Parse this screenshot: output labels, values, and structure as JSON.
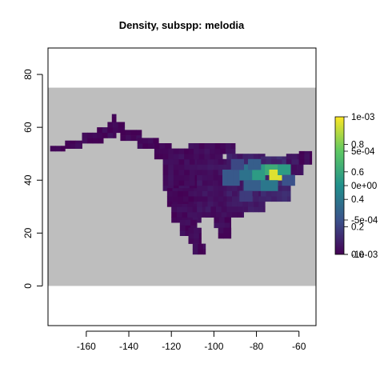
{
  "chart_data": {
    "type": "heatmap",
    "title": "Density, subspp: melodia",
    "xlabel": "",
    "ylabel": "",
    "xlim": [
      -178,
      -52
    ],
    "ylim": [
      -15,
      90
    ],
    "x_ticks": [
      -160,
      -140,
      -120,
      -100,
      -80,
      -60
    ],
    "y_ticks": [
      0,
      20,
      40,
      60,
      80
    ],
    "background_region": {
      "x": [
        -178,
        -52
      ],
      "y": [
        0,
        75
      ],
      "color": "#bebebe"
    },
    "colors": {
      "low": "#440154",
      "mid1": "#3b528b",
      "mid2": "#21908c",
      "mid3": "#5dc863",
      "high": "#fde725",
      "background": "#bebebe"
    },
    "legend": {
      "position": "right",
      "scale_left": [
        "1e-03",
        "5e-04",
        "0e+00",
        "-5e-04",
        "-1e-03"
      ],
      "scale_left_values": [
        0.001,
        0.0005,
        0,
        -0.0005,
        -0.001
      ],
      "scale_right": [
        "0.8",
        "0.6",
        "0.4",
        "0.2",
        "0.0"
      ],
      "scale_right_values": [
        0.8,
        0.6,
        0.4,
        0.2,
        0.0
      ]
    },
    "cell_size": [
      2.5,
      2
    ],
    "density_blocks": [
      {
        "x": [
          -177,
          -170
        ],
        "y": [
          51,
          53
        ],
        "v": 0.02
      },
      {
        "x": [
          -170,
          -162
        ],
        "y": [
          52,
          55
        ],
        "v": 0.02
      },
      {
        "x": [
          -162,
          -152
        ],
        "y": [
          54,
          58
        ],
        "v": 0.02
      },
      {
        "x": [
          -155,
          -146
        ],
        "y": [
          56,
          60
        ],
        "v": 0.02
      },
      {
        "x": [
          -150,
          -142
        ],
        "y": [
          58,
          62
        ],
        "v": 0.02
      },
      {
        "x": [
          -148,
          -146
        ],
        "y": [
          62,
          65
        ],
        "v": 0.02
      },
      {
        "x": [
          -144,
          -134
        ],
        "y": [
          55,
          59
        ],
        "v": 0.02
      },
      {
        "x": [
          -136,
          -126
        ],
        "y": [
          52,
          56
        ],
        "v": 0.02
      },
      {
        "x": [
          -128,
          -120
        ],
        "y": [
          48,
          54
        ],
        "v": 0.02
      },
      {
        "x": [
          -124,
          -108
        ],
        "y": [
          36,
          52
        ],
        "v": 0.03
      },
      {
        "x": [
          -122,
          -104
        ],
        "y": [
          30,
          37
        ],
        "v": 0.03
      },
      {
        "x": [
          -120,
          -106
        ],
        "y": [
          24,
          31
        ],
        "v": 0.03
      },
      {
        "x": [
          -116,
          -108
        ],
        "y": [
          19,
          25
        ],
        "v": 0.02
      },
      {
        "x": [
          -108,
          -92
        ],
        "y": [
          26,
          48
        ],
        "v": 0.05
      },
      {
        "x": [
          -112,
          -96
        ],
        "y": [
          48,
          54
        ],
        "v": 0.03
      },
      {
        "x": [
          -102,
          -90
        ],
        "y": [
          50,
          54
        ],
        "v": 0.03
      },
      {
        "x": [
          -94,
          -76
        ],
        "y": [
          28,
          50
        ],
        "v": 0.08
      },
      {
        "x": [
          -78,
          -64
        ],
        "y": [
          32,
          49
        ],
        "v": 0.12
      },
      {
        "x": [
          -66,
          -58
        ],
        "y": [
          42,
          50
        ],
        "v": 0.06
      },
      {
        "x": [
          -60,
          -54
        ],
        "y": [
          46,
          51
        ],
        "v": 0.03
      },
      {
        "x": [
          -104,
          -86
        ],
        "y": [
          26,
          30
        ],
        "v": 0.05
      },
      {
        "x": [
          -100,
          -92
        ],
        "y": [
          22,
          26
        ],
        "v": 0.03
      },
      {
        "x": [
          -112,
          -106
        ],
        "y": [
          16,
          22
        ],
        "v": 0.02
      },
      {
        "x": [
          -98,
          -92
        ],
        "y": [
          18,
          22
        ],
        "v": 0.02
      },
      {
        "x": [
          -110,
          -104
        ],
        "y": [
          12,
          16
        ],
        "v": 0.02
      }
    ],
    "hotspots": [
      {
        "x": [
          -96,
          -88
        ],
        "y": [
          38,
          44
        ],
        "v": 0.28
      },
      {
        "x": [
          -88,
          -82
        ],
        "y": [
          40,
          46
        ],
        "v": 0.38
      },
      {
        "x": [
          -82,
          -76
        ],
        "y": [
          40,
          46
        ],
        "v": 0.55
      },
      {
        "x": [
          -86,
          -78
        ],
        "y": [
          36,
          40
        ],
        "v": 0.3
      },
      {
        "x": [
          -76,
          -70
        ],
        "y": [
          42,
          46
        ],
        "v": 0.62
      },
      {
        "x": [
          -74,
          -68
        ],
        "y": [
          40,
          44
        ],
        "v": 0.95
      },
      {
        "x": [
          -70,
          -64
        ],
        "y": [
          42,
          46
        ],
        "v": 0.55
      },
      {
        "x": [
          -78,
          -70
        ],
        "y": [
          36,
          40
        ],
        "v": 0.4
      },
      {
        "x": [
          -84,
          -78
        ],
        "y": [
          44,
          48
        ],
        "v": 0.3
      },
      {
        "x": [
          -92,
          -86
        ],
        "y": [
          44,
          48
        ],
        "v": 0.22
      },
      {
        "x": [
          -88,
          -82
        ],
        "y": [
          32,
          36
        ],
        "v": 0.18
      },
      {
        "x": [
          -68,
          -62
        ],
        "y": [
          38,
          42
        ],
        "v": 0.25
      }
    ],
    "grid": false
  }
}
